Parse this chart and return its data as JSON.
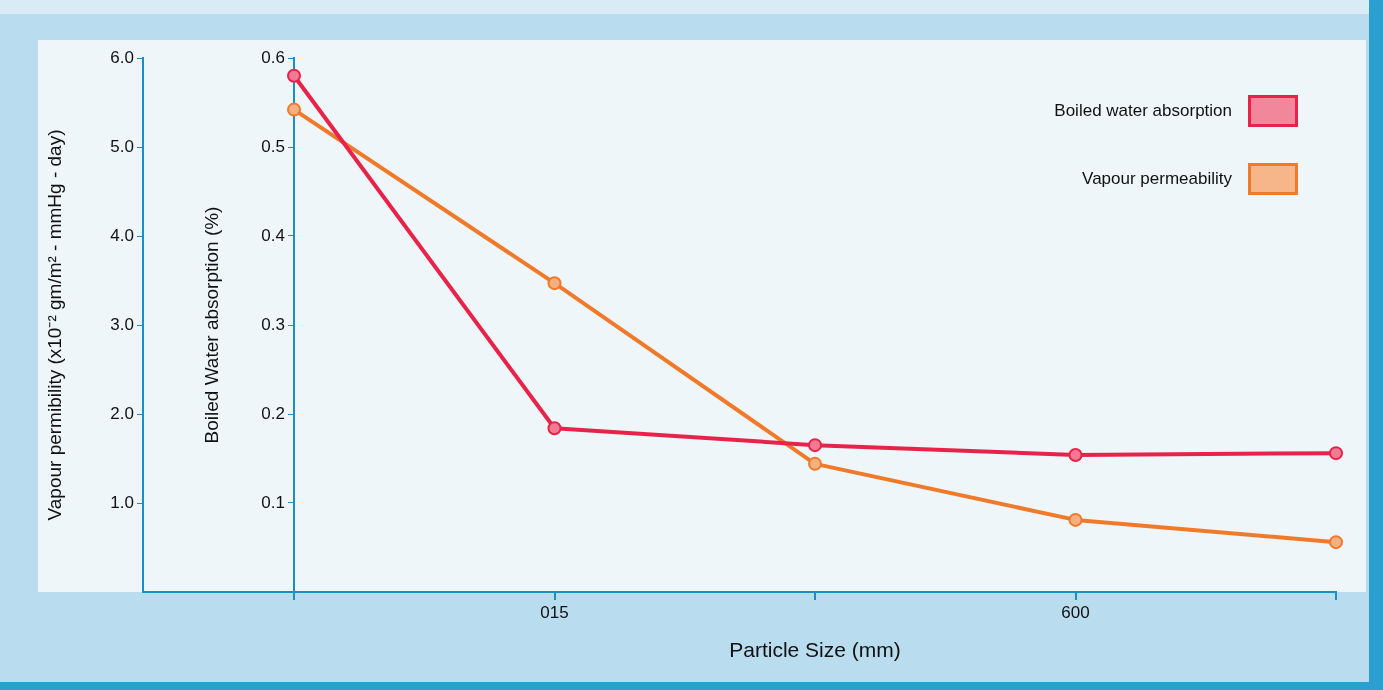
{
  "chart_data": {
    "type": "line",
    "xlabel": "Particle Size (mm)",
    "ylabel": "Vapour permibility (x10⁻² gm/m² - mmHg - day)",
    "y2label": "Boiled Water absorption (%)",
    "categories": [
      null,
      "015",
      null,
      "600",
      null
    ],
    "series": [
      {
        "name": "Boiled water absorption",
        "color": "#e8234a",
        "axis": "y2",
        "values": [
          0.58,
          0.184,
          0.165,
          0.154,
          0.156
        ]
      },
      {
        "name": "Vapour permeability",
        "color": "#f07a2a",
        "axis": "y",
        "values": [
          5.42,
          3.47,
          1.44,
          0.81,
          0.56
        ]
      }
    ],
    "ylim": [
      0,
      6
    ],
    "yticks": [
      {
        "value": 1,
        "label": "1.0"
      },
      {
        "value": 2,
        "label": "2.0"
      },
      {
        "value": 3,
        "label": "3.0"
      },
      {
        "value": 4,
        "label": "4.0"
      },
      {
        "value": 5,
        "label": "5.0"
      },
      {
        "value": 6,
        "label": "6.0"
      }
    ],
    "y2lim": [
      0,
      0.6
    ],
    "y2ticks": [
      0.1,
      0.2,
      0.3,
      0.4,
      0.5,
      0.6
    ],
    "legend": "top right",
    "grid": false,
    "marker": "circle",
    "line_style": "solid"
  }
}
